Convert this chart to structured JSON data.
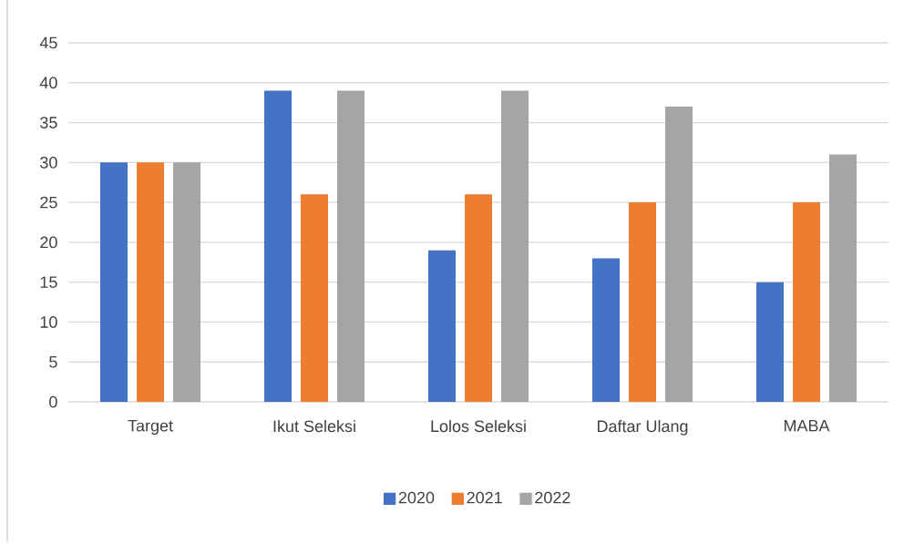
{
  "chart_data": {
    "type": "bar",
    "categories": [
      "Target",
      "Ikut Seleksi",
      "Lolos Seleksi",
      "Daftar Ulang",
      "MABA"
    ],
    "series": [
      {
        "name": "2020",
        "color": "#4472c4",
        "values": [
          30,
          39,
          19,
          18,
          15
        ]
      },
      {
        "name": "2021",
        "color": "#ed7d31",
        "values": [
          30,
          26,
          26,
          25,
          25
        ]
      },
      {
        "name": "2022",
        "color": "#a5a5a5",
        "values": [
          30,
          39,
          39,
          37,
          31
        ]
      }
    ],
    "ylim": [
      0,
      45
    ],
    "yticks": [
      0,
      5,
      10,
      15,
      20,
      25,
      30,
      35,
      40,
      45
    ],
    "grid": "y",
    "legend": "bottom"
  }
}
